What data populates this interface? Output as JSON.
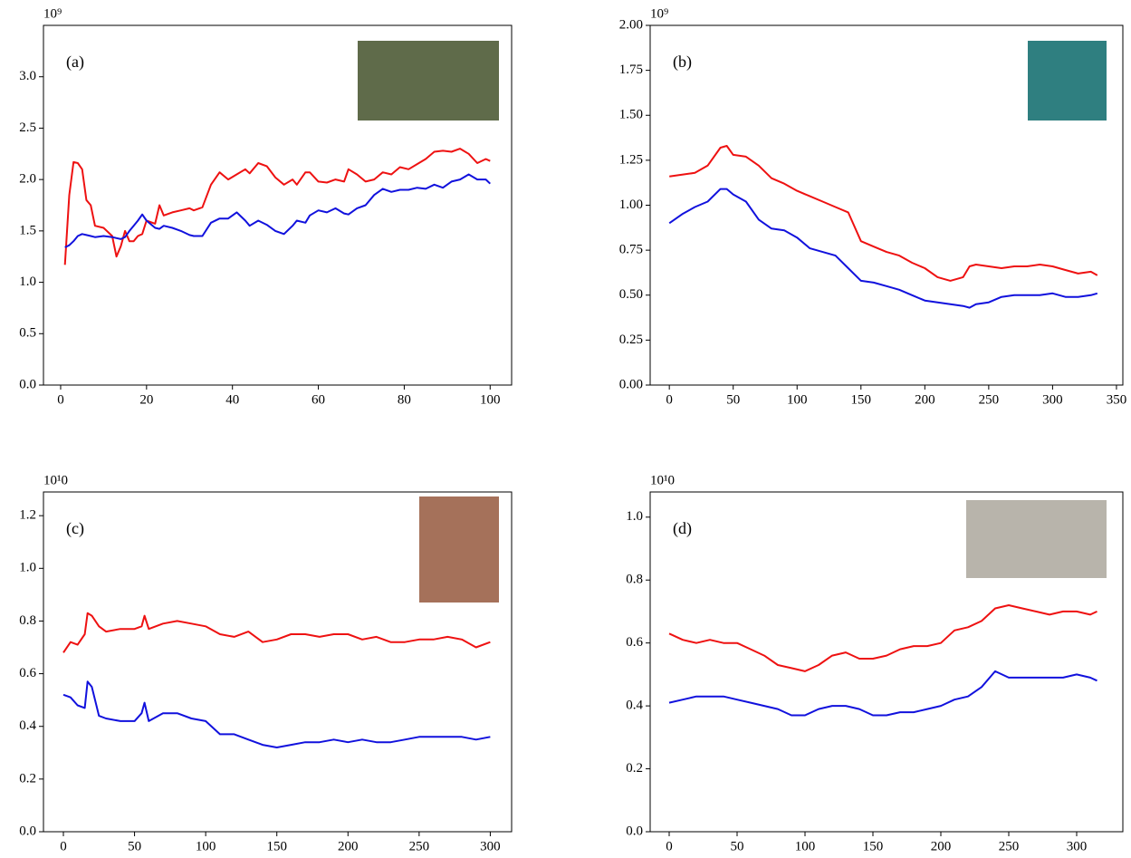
{
  "chart_data": [
    {
      "type": "line",
      "offset_text": "10⁹",
      "annotation": "(a)",
      "x": [
        1,
        2,
        3,
        4,
        5,
        6,
        7,
        8,
        10,
        12,
        13,
        14,
        15,
        16,
        17,
        18,
        19,
        20,
        22,
        23,
        24,
        26,
        28,
        30,
        31,
        33,
        35,
        37,
        39,
        41,
        43,
        44,
        46,
        48,
        50,
        52,
        54,
        55,
        57,
        58,
        60,
        62,
        64,
        66,
        67,
        69,
        71,
        73,
        75,
        77,
        79,
        81,
        83,
        85,
        87,
        89,
        91,
        93,
        95,
        97,
        99,
        100
      ],
      "series": [
        {
          "color": "#ee1111",
          "values": [
            1.17,
            1.85,
            2.17,
            2.16,
            2.1,
            1.8,
            1.75,
            1.55,
            1.53,
            1.45,
            1.25,
            1.35,
            1.5,
            1.4,
            1.4,
            1.45,
            1.47,
            1.6,
            1.57,
            1.75,
            1.65,
            1.68,
            1.7,
            1.72,
            1.7,
            1.73,
            1.95,
            2.07,
            2.0,
            2.05,
            2.1,
            2.06,
            2.16,
            2.13,
            2.02,
            1.95,
            2.0,
            1.95,
            2.07,
            2.07,
            1.98,
            1.97,
            2.0,
            1.98,
            2.1,
            2.05,
            1.98,
            2.0,
            2.07,
            2.05,
            2.12,
            2.1,
            2.15,
            2.2,
            2.27,
            2.28,
            2.27,
            2.3,
            2.25,
            2.16,
            2.2,
            2.18
          ]
        },
        {
          "color": "#1111dd",
          "values": [
            1.34,
            1.36,
            1.4,
            1.45,
            1.47,
            1.46,
            1.45,
            1.44,
            1.45,
            1.44,
            1.43,
            1.42,
            1.44,
            1.5,
            1.55,
            1.6,
            1.66,
            1.6,
            1.53,
            1.52,
            1.55,
            1.53,
            1.5,
            1.46,
            1.45,
            1.45,
            1.58,
            1.62,
            1.62,
            1.68,
            1.6,
            1.55,
            1.6,
            1.56,
            1.5,
            1.47,
            1.55,
            1.6,
            1.58,
            1.65,
            1.7,
            1.68,
            1.72,
            1.67,
            1.66,
            1.72,
            1.75,
            1.85,
            1.91,
            1.88,
            1.9,
            1.9,
            1.92,
            1.91,
            1.95,
            1.92,
            1.98,
            2.0,
            2.05,
            2.0,
            2.0,
            1.96
          ]
        }
      ],
      "xlim": [
        -4,
        105
      ],
      "xticks": [
        0,
        20,
        40,
        60,
        80,
        100
      ],
      "ylim": [
        0,
        3.5
      ],
      "yticks": [
        {
          "value": 0,
          "label": "0.0"
        },
        0.5,
        {
          "value": 1,
          "label": "1.0"
        },
        1.5,
        {
          "value": 2,
          "label": "2.0"
        },
        2.5,
        {
          "value": 3,
          "label": "3.0"
        }
      ]
    },
    {
      "type": "line",
      "offset_text": "10⁹",
      "annotation": "(b)",
      "x": [
        0,
        10,
        20,
        30,
        40,
        45,
        50,
        60,
        70,
        80,
        90,
        100,
        110,
        120,
        130,
        140,
        150,
        160,
        170,
        180,
        190,
        200,
        210,
        220,
        230,
        235,
        240,
        250,
        260,
        270,
        280,
        290,
        300,
        310,
        320,
        330,
        335
      ],
      "series": [
        {
          "color": "#ee1111",
          "values": [
            1.16,
            1.17,
            1.18,
            1.22,
            1.32,
            1.33,
            1.28,
            1.27,
            1.22,
            1.15,
            1.12,
            1.08,
            1.05,
            1.02,
            0.99,
            0.96,
            0.8,
            0.77,
            0.74,
            0.72,
            0.68,
            0.65,
            0.6,
            0.58,
            0.6,
            0.66,
            0.67,
            0.66,
            0.65,
            0.66,
            0.66,
            0.67,
            0.66,
            0.64,
            0.62,
            0.63,
            0.61
          ]
        },
        {
          "color": "#1111dd",
          "values": [
            0.9,
            0.95,
            0.99,
            1.02,
            1.09,
            1.09,
            1.06,
            1.02,
            0.92,
            0.87,
            0.86,
            0.82,
            0.76,
            0.74,
            0.72,
            0.65,
            0.58,
            0.57,
            0.55,
            0.53,
            0.5,
            0.47,
            0.46,
            0.45,
            0.44,
            0.43,
            0.45,
            0.46,
            0.49,
            0.5,
            0.5,
            0.5,
            0.51,
            0.49,
            0.49,
            0.5,
            0.51
          ]
        }
      ],
      "xlim": [
        -15,
        355
      ],
      "xticks": [
        0,
        50,
        100,
        150,
        200,
        250,
        300,
        350
      ],
      "ylim": [
        0,
        2
      ],
      "yticks": [
        {
          "value": 0,
          "label": "0.00"
        },
        0.25,
        {
          "value": 0.5,
          "label": "0.50"
        },
        0.75,
        {
          "value": 1,
          "label": "1.00"
        },
        1.25,
        {
          "value": 1.5,
          "label": "1.50"
        },
        1.75,
        {
          "value": 2,
          "label": "2.00"
        }
      ]
    },
    {
      "type": "line",
      "offset_text": "10¹0",
      "annotation": "(c)",
      "x": [
        0,
        5,
        10,
        15,
        17,
        20,
        25,
        30,
        40,
        50,
        55,
        57,
        60,
        70,
        80,
        90,
        100,
        110,
        120,
        130,
        140,
        150,
        160,
        170,
        180,
        190,
        200,
        210,
        220,
        230,
        240,
        250,
        260,
        270,
        280,
        290,
        300
      ],
      "series": [
        {
          "color": "#ee1111",
          "values": [
            0.68,
            0.72,
            0.71,
            0.75,
            0.83,
            0.82,
            0.78,
            0.76,
            0.77,
            0.77,
            0.78,
            0.82,
            0.77,
            0.79,
            0.8,
            0.79,
            0.78,
            0.75,
            0.74,
            0.76,
            0.72,
            0.73,
            0.75,
            0.75,
            0.74,
            0.75,
            0.75,
            0.73,
            0.74,
            0.72,
            0.72,
            0.73,
            0.73,
            0.74,
            0.73,
            0.7,
            0.72
          ]
        },
        {
          "color": "#1111dd",
          "values": [
            0.52,
            0.51,
            0.48,
            0.47,
            0.57,
            0.55,
            0.44,
            0.43,
            0.42,
            0.42,
            0.45,
            0.49,
            0.42,
            0.45,
            0.45,
            0.43,
            0.42,
            0.37,
            0.37,
            0.35,
            0.33,
            0.32,
            0.33,
            0.34,
            0.34,
            0.35,
            0.34,
            0.35,
            0.34,
            0.34,
            0.35,
            0.36,
            0.36,
            0.36,
            0.36,
            0.35,
            0.36
          ]
        }
      ],
      "xlim": [
        -14,
        315
      ],
      "xticks": [
        0,
        50,
        100,
        150,
        200,
        250,
        300
      ],
      "ylim": [
        0,
        1.29
      ],
      "yticks": [
        {
          "value": 0,
          "label": "0.0"
        },
        0.2,
        0.4,
        0.6,
        0.8,
        {
          "value": 1,
          "label": "1.0"
        },
        1.2
      ]
    },
    {
      "type": "line",
      "offset_text": "10¹0",
      "annotation": "(d)",
      "x": [
        0,
        10,
        20,
        30,
        40,
        50,
        60,
        70,
        80,
        90,
        100,
        110,
        120,
        130,
        140,
        150,
        160,
        170,
        180,
        190,
        200,
        210,
        220,
        230,
        240,
        250,
        260,
        270,
        280,
        290,
        300,
        310,
        315
      ],
      "series": [
        {
          "color": "#ee1111",
          "values": [
            0.63,
            0.61,
            0.6,
            0.61,
            0.6,
            0.6,
            0.58,
            0.56,
            0.53,
            0.52,
            0.51,
            0.53,
            0.56,
            0.57,
            0.55,
            0.55,
            0.56,
            0.58,
            0.59,
            0.59,
            0.6,
            0.64,
            0.65,
            0.67,
            0.71,
            0.72,
            0.71,
            0.7,
            0.69,
            0.7,
            0.7,
            0.69,
            0.7
          ]
        },
        {
          "color": "#1111dd",
          "values": [
            0.41,
            0.42,
            0.43,
            0.43,
            0.43,
            0.42,
            0.41,
            0.4,
            0.39,
            0.37,
            0.37,
            0.39,
            0.4,
            0.4,
            0.39,
            0.37,
            0.37,
            0.38,
            0.38,
            0.39,
            0.4,
            0.42,
            0.43,
            0.46,
            0.51,
            0.49,
            0.49,
            0.49,
            0.49,
            0.49,
            0.5,
            0.49,
            0.48
          ]
        }
      ],
      "xlim": [
        -14,
        334
      ],
      "xticks": [
        0,
        50,
        100,
        150,
        200,
        250,
        300
      ],
      "ylim": [
        0,
        1.08
      ],
      "yticks": [
        {
          "value": 0,
          "label": "0.0"
        },
        0.2,
        0.4,
        0.6,
        0.8,
        {
          "value": 1,
          "label": "1.0"
        }
      ]
    }
  ]
}
